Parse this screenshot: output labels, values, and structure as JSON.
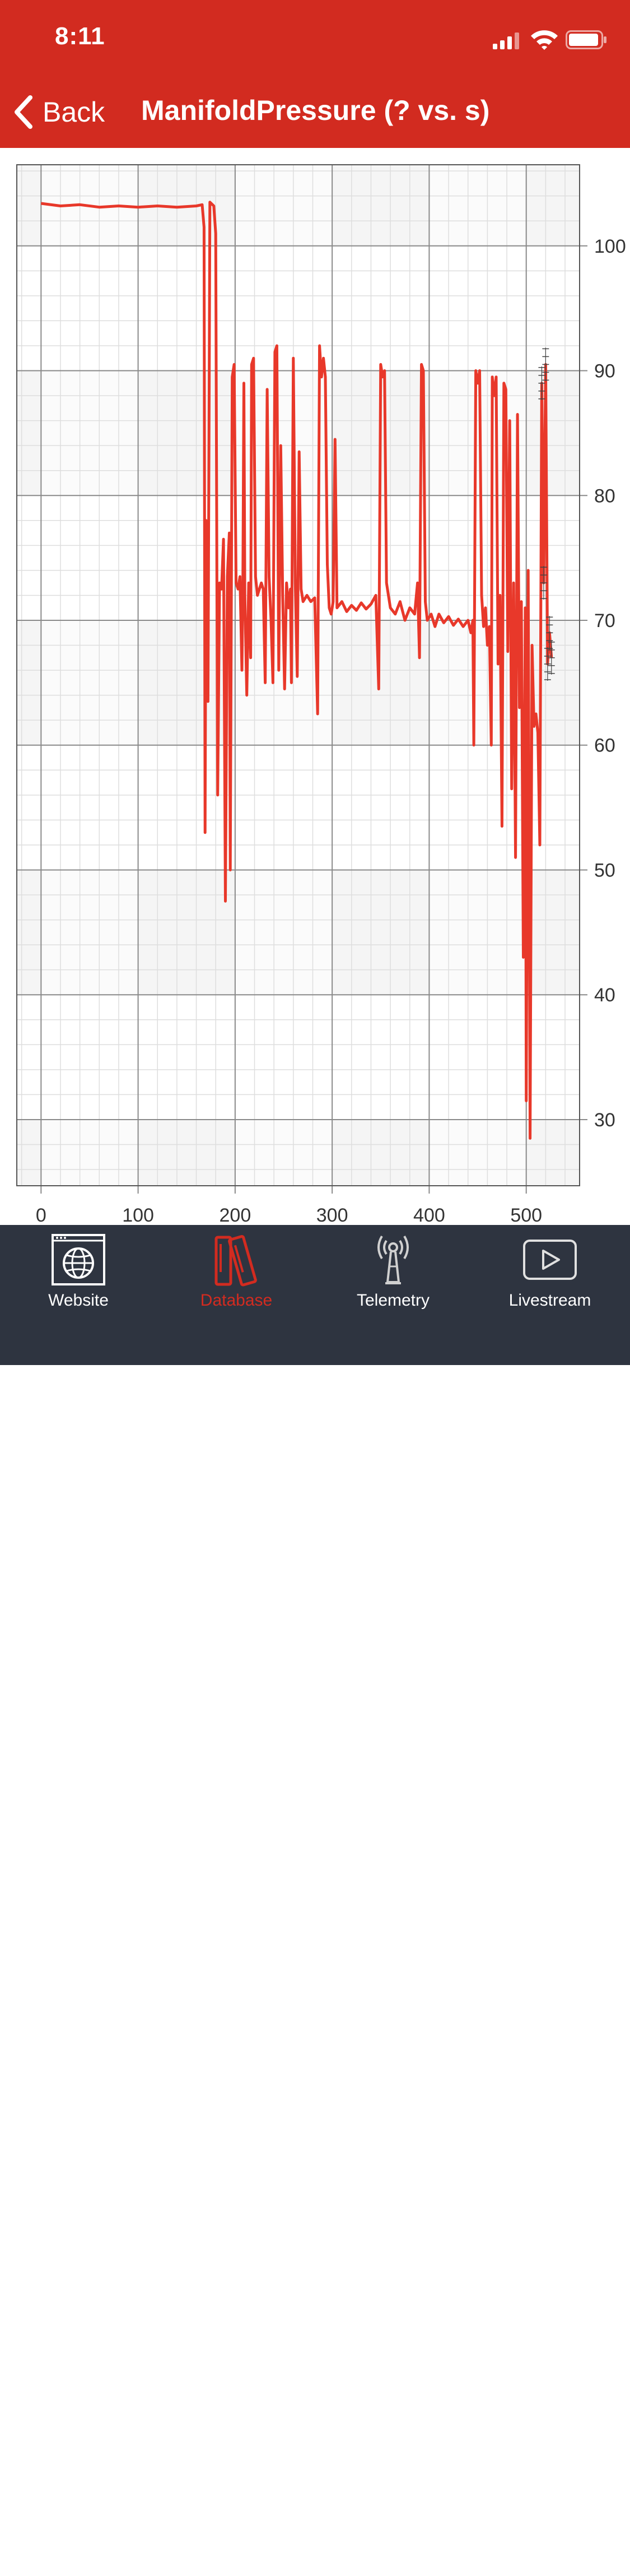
{
  "status_bar": {
    "time": "8:11"
  },
  "nav": {
    "back_label": "Back",
    "title": "ManifoldPressure (? vs. s)"
  },
  "colors": {
    "header": "#d22b20",
    "line": "#e8382a",
    "tabbar": "#2e3440",
    "active_tab": "#d22b20"
  },
  "chart_data": {
    "type": "line",
    "title": "",
    "xlabel": "",
    "ylabel": "",
    "xlim": [
      -25,
      555
    ],
    "ylim": [
      24.7,
      106.5
    ],
    "x_ticks": [
      0,
      100,
      200,
      300,
      400,
      500
    ],
    "y_ticks": [
      30,
      40,
      50,
      60,
      70,
      80,
      90,
      100
    ],
    "y_axis_position": "right",
    "grid": true,
    "series": [
      {
        "name": "",
        "color": "#e8382a",
        "points": [
          [
            0,
            103.4
          ],
          [
            20,
            103.2
          ],
          [
            40,
            103.3
          ],
          [
            60,
            103.1
          ],
          [
            80,
            103.2
          ],
          [
            100,
            103.1
          ],
          [
            120,
            103.2
          ],
          [
            140,
            103.1
          ],
          [
            160,
            103.2
          ],
          [
            166,
            103.3
          ],
          [
            168,
            101.5
          ],
          [
            169,
            53.0
          ],
          [
            170,
            78.0
          ],
          [
            172,
            63.5
          ],
          [
            174,
            103.5
          ],
          [
            178,
            103.2
          ],
          [
            180,
            101.0
          ],
          [
            182,
            56.0
          ],
          [
            184,
            73.0
          ],
          [
            186,
            72.5
          ],
          [
            188,
            76.5
          ],
          [
            190,
            47.5
          ],
          [
            192,
            73.5
          ],
          [
            194,
            77.0
          ],
          [
            195,
            50.0
          ],
          [
            197,
            89.5
          ],
          [
            199,
            90.5
          ],
          [
            201,
            73.0
          ],
          [
            203,
            72.5
          ],
          [
            205,
            73.5
          ],
          [
            207,
            66.0
          ],
          [
            208,
            73.0
          ],
          [
            209,
            89.0
          ],
          [
            210,
            72.0
          ],
          [
            212,
            64.0
          ],
          [
            214,
            73.0
          ],
          [
            216,
            67.0
          ],
          [
            217,
            90.5
          ],
          [
            219,
            91.0
          ],
          [
            221,
            73.5
          ],
          [
            223,
            72.0
          ],
          [
            225,
            72.5
          ],
          [
            227,
            73.0
          ],
          [
            229,
            72.5
          ],
          [
            231,
            65.0
          ],
          [
            233,
            88.5
          ],
          [
            235,
            73.5
          ],
          [
            237,
            70.0
          ],
          [
            239,
            65.0
          ],
          [
            241,
            91.5
          ],
          [
            243,
            92.0
          ],
          [
            245,
            66.0
          ],
          [
            247,
            84.0
          ],
          [
            249,
            72.0
          ],
          [
            251,
            64.5
          ],
          [
            253,
            73.0
          ],
          [
            255,
            71.0
          ],
          [
            257,
            72.5
          ],
          [
            258,
            65.0
          ],
          [
            260,
            91.0
          ],
          [
            262,
            73.0
          ],
          [
            264,
            65.5
          ],
          [
            266,
            83.5
          ],
          [
            268,
            72.5
          ],
          [
            270,
            71.5
          ],
          [
            274,
            72.0
          ],
          [
            278,
            71.5
          ],
          [
            282,
            71.8
          ],
          [
            285,
            62.5
          ],
          [
            287,
            92.0
          ],
          [
            289,
            89.5
          ],
          [
            291,
            91.0
          ],
          [
            293,
            89.5
          ],
          [
            295,
            74.5
          ],
          [
            297,
            71.0
          ],
          [
            299,
            70.5
          ],
          [
            301,
            71.5
          ],
          [
            303,
            84.5
          ],
          [
            305,
            71.0
          ],
          [
            310,
            71.5
          ],
          [
            315,
            70.7
          ],
          [
            320,
            71.2
          ],
          [
            325,
            70.8
          ],
          [
            330,
            71.4
          ],
          [
            335,
            70.9
          ],
          [
            340,
            71.3
          ],
          [
            345,
            72.0
          ],
          [
            348,
            64.5
          ],
          [
            350,
            90.5
          ],
          [
            352,
            89.5
          ],
          [
            354,
            90.0
          ],
          [
            356,
            73.0
          ],
          [
            358,
            72.0
          ],
          [
            360,
            71.0
          ],
          [
            365,
            70.5
          ],
          [
            370,
            71.5
          ],
          [
            375,
            70.0
          ],
          [
            380,
            71.0
          ],
          [
            385,
            70.5
          ],
          [
            388,
            73.0
          ],
          [
            390,
            67.0
          ],
          [
            392,
            90.5
          ],
          [
            394,
            90.0
          ],
          [
            396,
            71.5
          ],
          [
            398,
            70.0
          ],
          [
            402,
            70.5
          ],
          [
            406,
            69.5
          ],
          [
            410,
            70.5
          ],
          [
            415,
            69.8
          ],
          [
            420,
            70.3
          ],
          [
            425,
            69.6
          ],
          [
            430,
            70.1
          ],
          [
            435,
            69.5
          ],
          [
            440,
            70.0
          ],
          [
            443,
            69.0
          ],
          [
            445,
            70.0
          ],
          [
            446,
            60.0
          ],
          [
            448,
            90.0
          ],
          [
            450,
            89.0
          ],
          [
            452,
            90.0
          ],
          [
            454,
            72.0
          ],
          [
            456,
            69.5
          ],
          [
            458,
            71.0
          ],
          [
            460,
            68.0
          ],
          [
            462,
            69.5
          ],
          [
            464,
            60.0
          ],
          [
            465,
            89.5
          ],
          [
            467,
            88.0
          ],
          [
            469,
            89.5
          ],
          [
            471,
            66.5
          ],
          [
            473,
            72.0
          ],
          [
            475,
            53.5
          ],
          [
            477,
            89.0
          ],
          [
            479,
            88.5
          ],
          [
            481,
            67.5
          ],
          [
            483,
            86.0
          ],
          [
            485,
            56.5
          ],
          [
            487,
            73.0
          ],
          [
            489,
            51.0
          ],
          [
            491,
            86.5
          ],
          [
            493,
            63.0
          ],
          [
            495,
            71.5
          ],
          [
            497,
            43.0
          ],
          [
            499,
            71.0
          ],
          [
            500,
            31.5
          ],
          [
            502,
            74.0
          ],
          [
            504,
            28.5
          ],
          [
            506,
            68.0
          ],
          [
            508,
            61.5
          ],
          [
            510,
            62.5
          ],
          [
            512,
            61.0
          ],
          [
            514,
            52.0
          ],
          [
            516,
            89.0
          ],
          [
            518,
            73.0
          ],
          [
            520,
            90.5
          ],
          [
            522,
            66.5
          ],
          [
            524,
            69.0
          ],
          [
            526,
            67.0
          ]
        ]
      }
    ]
  },
  "tabs": [
    {
      "label": "Website",
      "icon": "globe-icon",
      "active": false
    },
    {
      "label": "Database",
      "icon": "database-icon",
      "active": true
    },
    {
      "label": "Telemetry",
      "icon": "antenna-icon",
      "active": false
    },
    {
      "label": "Livestream",
      "icon": "play-icon",
      "active": false
    }
  ]
}
